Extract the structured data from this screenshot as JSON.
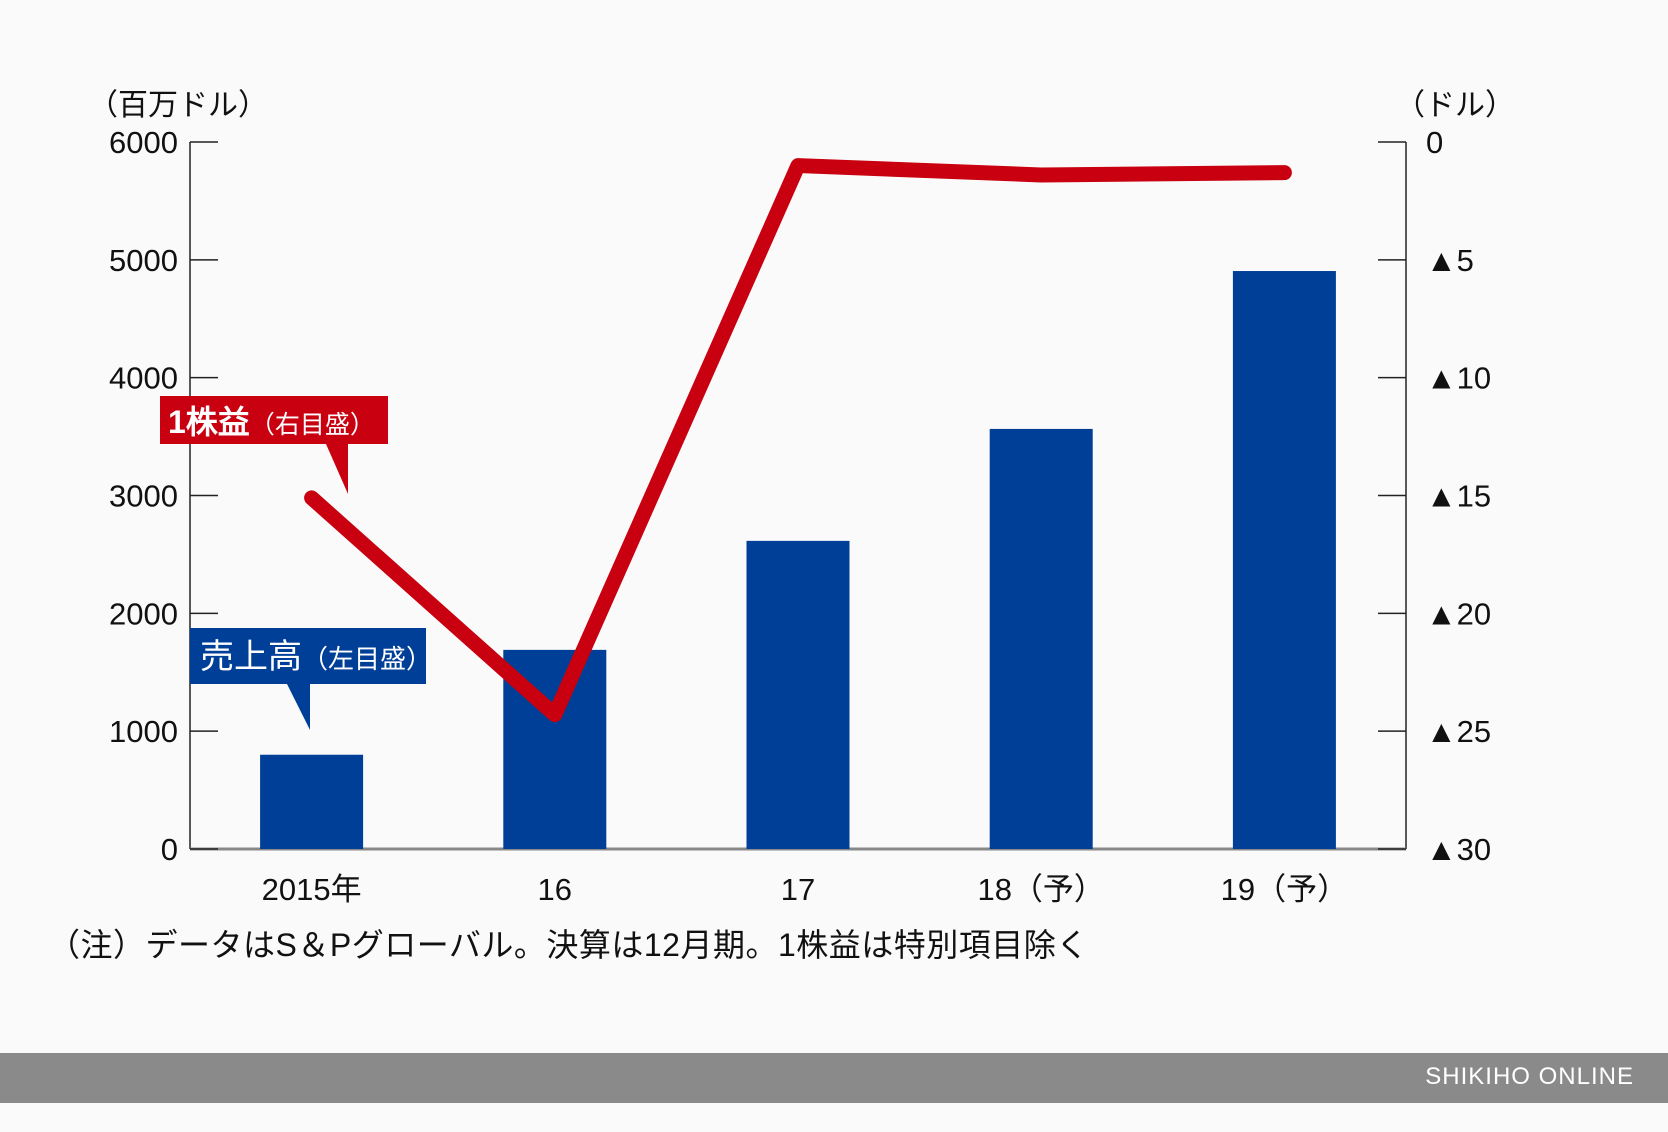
{
  "chart_data": {
    "type": "bar+line",
    "title": "",
    "categories": [
      "2015年",
      "16",
      "17",
      "18（予）",
      "19（予）"
    ],
    "series": [
      {
        "name": "売上高（左目盛）",
        "type": "bar",
        "axis": "left",
        "color": "#003f98",
        "values": [
          800,
          1690,
          2615,
          3565,
          4905
        ]
      },
      {
        "name": "1株益（右目盛）",
        "type": "line",
        "axis": "right",
        "color": "#c8000f",
        "values": [
          -15.1,
          -24.3,
          -1.0,
          -1.4,
          -1.3
        ]
      }
    ],
    "left_axis": {
      "label": "（百万ドル）",
      "ylim": [
        0,
        6000
      ],
      "ticks": [
        0,
        1000,
        2000,
        3000,
        4000,
        5000,
        6000
      ],
      "tick_labels": [
        "0",
        "1000",
        "2000",
        "3000",
        "4000",
        "5000",
        "6000"
      ]
    },
    "right_axis": {
      "label": "（ドル）",
      "ylim": [
        -30,
        0
      ],
      "ticks": [
        0,
        -5,
        -10,
        -15,
        -20,
        -25,
        -30
      ],
      "tick_labels": [
        "0",
        "▲5",
        "▲10",
        "▲15",
        "▲20",
        "▲25",
        "▲30"
      ]
    },
    "legend": {
      "bar_callout": "売上高（左目盛）",
      "line_callout": "1株益（右目盛）"
    },
    "grid": false
  },
  "labels": {
    "left_unit": "（百万ドル）",
    "right_unit": "（ドル）",
    "sales_callout_main": "売上高",
    "sales_callout_sub": "（左目盛）",
    "eps_callout_main": "1株益",
    "eps_callout_sub": "（右目盛）"
  },
  "note": "（注）データはS＆Pグローバル。決算は12月期。1株益は特別項目除く",
  "footer": "SHIKIHO ONLINE",
  "colors": {
    "bar": "#003f98",
    "line": "#c8000f",
    "footer_bg": "#8a8a8a"
  }
}
